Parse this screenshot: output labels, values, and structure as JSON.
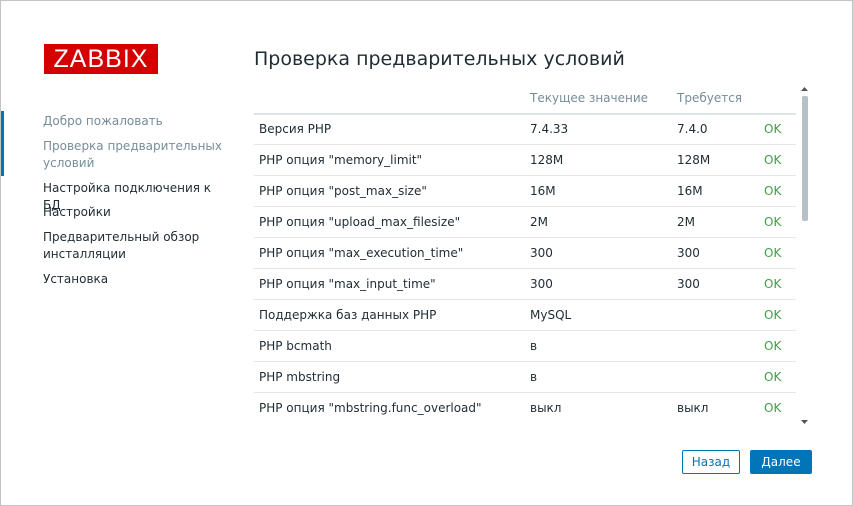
{
  "logo": "ZABBIX",
  "steps": [
    "Добро пожаловать",
    "Проверка предварительных условий",
    "Настройка подключения к БД",
    "Настройки",
    "Предварительный обзор инсталляции",
    "Установка"
  ],
  "title": "Проверка предварительных условий",
  "table": {
    "columns": [
      "Текущее значение",
      "Требуется"
    ],
    "rows": [
      {
        "name": "Версия PHP",
        "current": "7.4.33",
        "required": "7.4.0",
        "status": "OK"
      },
      {
        "name": "PHP опция \"memory_limit\"",
        "current": "128M",
        "required": "128M",
        "status": "OK"
      },
      {
        "name": "PHP опция \"post_max_size\"",
        "current": "16M",
        "required": "16M",
        "status": "OK"
      },
      {
        "name": "PHP опция \"upload_max_filesize\"",
        "current": "2M",
        "required": "2M",
        "status": "OK"
      },
      {
        "name": "PHP опция \"max_execution_time\"",
        "current": "300",
        "required": "300",
        "status": "OK"
      },
      {
        "name": "PHP опция \"max_input_time\"",
        "current": "300",
        "required": "300",
        "status": "OK"
      },
      {
        "name": "Поддержка баз данных PHP",
        "current": "MySQL",
        "status": "OK"
      },
      {
        "name": "PHP bcmath",
        "current": "в",
        "status": "OK"
      },
      {
        "name": "PHP mbstring",
        "current": "в",
        "status": "OK"
      },
      {
        "name": "PHP опция \"mbstring.func_overload\"",
        "current": "выкл",
        "required": "выкл",
        "status": "OK"
      }
    ]
  },
  "buttons": {
    "back": "Назад",
    "next": "Далее"
  }
}
